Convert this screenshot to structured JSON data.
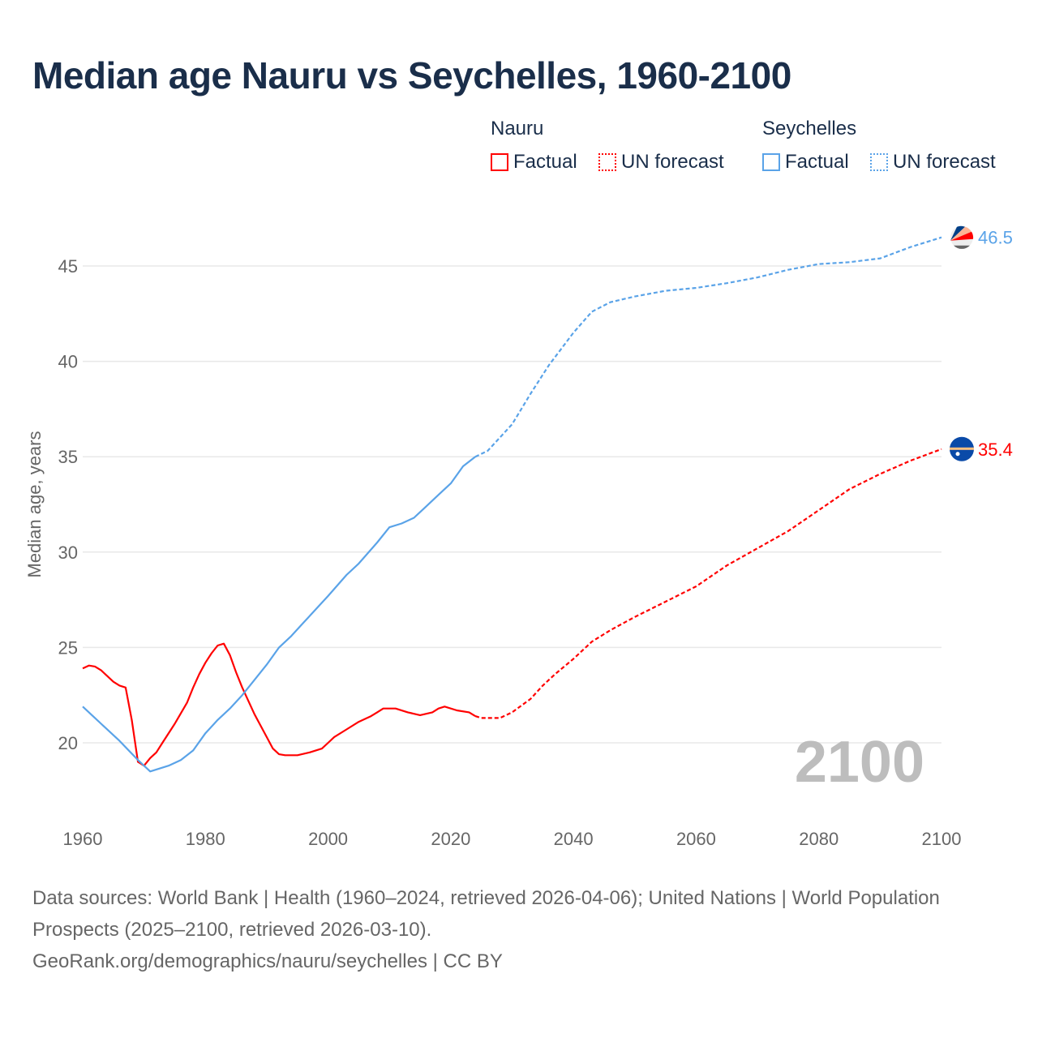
{
  "title": "Median age Nauru vs Seychelles, 1960-2100",
  "legend": {
    "nauru": "Nauru",
    "seychelles": "Seychelles",
    "factual": "Factual",
    "forecast": "UN forecast"
  },
  "colors": {
    "nauru": "#ff0000",
    "seychelles": "#5aa3e8"
  },
  "source": {
    "line1": "Data sources: World Bank | Health (1960–2024, retrieved 2026-04-06); United Nations | World Population Prospects (2025–2100, retrieved 2026-03-10).",
    "line2": "GeoRank.org/demographics/nauru/seychelles | CC BY"
  },
  "chart_data": {
    "type": "line",
    "title": "Median age Nauru vs Seychelles, 1960-2100",
    "xlabel": "",
    "ylabel": "Median age, years",
    "xlim": [
      1960,
      2100
    ],
    "ylim": [
      16,
      47.5
    ],
    "xticks": [
      1960,
      1980,
      2000,
      2020,
      2040,
      2060,
      2080,
      2100
    ],
    "yticks": [
      20,
      25,
      30,
      35,
      40,
      45
    ],
    "year_watermark": "2100",
    "series": [
      {
        "name": "Nauru",
        "kind": "factual",
        "color": "#ff0000",
        "x": [
          1960,
          1961,
          1962,
          1963,
          1965,
          1966,
          1967,
          1968,
          1969,
          1970,
          1971,
          1972,
          1973,
          1975,
          1977,
          1978,
          1979,
          1980,
          1981,
          1982,
          1983,
          1984,
          1985,
          1986,
          1988,
          1990,
          1991,
          1992,
          1993,
          1995,
          1997,
          1999,
          2000,
          2001,
          2003,
          2005,
          2007,
          2008,
          2009,
          2011,
          2013,
          2015,
          2017,
          2018,
          2019,
          2021,
          2023,
          2024
        ],
        "y": [
          23.9,
          24.05,
          24.0,
          23.8,
          23.2,
          23.0,
          22.9,
          21.2,
          19.0,
          18.8,
          19.2,
          19.5,
          20.0,
          21.0,
          22.1,
          22.9,
          23.6,
          24.2,
          24.7,
          25.1,
          25.2,
          24.6,
          23.7,
          22.9,
          21.5,
          20.3,
          19.7,
          19.4,
          19.35,
          19.35,
          19.5,
          19.7,
          20.0,
          20.3,
          20.7,
          21.1,
          21.4,
          21.6,
          21.8,
          21.8,
          21.6,
          21.45,
          21.6,
          21.8,
          21.9,
          21.7,
          21.6,
          21.4
        ]
      },
      {
        "name": "Nauru",
        "kind": "forecast",
        "color": "#ff0000",
        "x": [
          2024,
          2025,
          2028,
          2030,
          2033,
          2035,
          2037,
          2040,
          2043,
          2046,
          2050,
          2055,
          2060,
          2065,
          2070,
          2075,
          2080,
          2085,
          2090,
          2095,
          2100
        ],
        "y": [
          21.4,
          21.3,
          21.3,
          21.6,
          22.3,
          23.0,
          23.6,
          24.4,
          25.3,
          25.9,
          26.6,
          27.4,
          28.2,
          29.3,
          30.2,
          31.1,
          32.2,
          33.3,
          34.1,
          34.8,
          35.4
        ]
      },
      {
        "name": "Seychelles",
        "kind": "factual",
        "color": "#5aa3e8",
        "x": [
          1960,
          1963,
          1966,
          1969,
          1971,
          1974,
          1976,
          1978,
          1980,
          1982,
          1984,
          1986,
          1988,
          1990,
          1992,
          1994,
          1996,
          1998,
          2000,
          2003,
          2005,
          2008,
          2010,
          2012,
          2014,
          2016,
          2018,
          2020,
          2022,
          2024
        ],
        "y": [
          21.9,
          21.0,
          20.1,
          19.1,
          18.5,
          18.8,
          19.1,
          19.6,
          20.5,
          21.2,
          21.8,
          22.5,
          23.3,
          24.1,
          25.0,
          25.6,
          26.3,
          27.0,
          27.7,
          28.8,
          29.4,
          30.5,
          31.3,
          31.5,
          31.8,
          32.4,
          33.0,
          33.6,
          34.5,
          35.0
        ]
      },
      {
        "name": "Seychelles",
        "kind": "forecast",
        "color": "#5aa3e8",
        "x": [
          2024,
          2026,
          2030,
          2033,
          2036,
          2040,
          2043,
          2046,
          2050,
          2055,
          2060,
          2065,
          2070,
          2075,
          2080,
          2085,
          2090,
          2095,
          2100
        ],
        "y": [
          35.0,
          35.3,
          36.7,
          38.3,
          39.8,
          41.5,
          42.6,
          43.1,
          43.4,
          43.7,
          43.85,
          44.1,
          44.4,
          44.8,
          45.1,
          45.2,
          45.4,
          46.0,
          46.5
        ]
      }
    ],
    "end_labels": [
      {
        "name": "Seychelles",
        "value": "46.5",
        "color": "#5aa3e8"
      },
      {
        "name": "Nauru",
        "value": "35.4",
        "color": "#ff0000"
      }
    ]
  }
}
